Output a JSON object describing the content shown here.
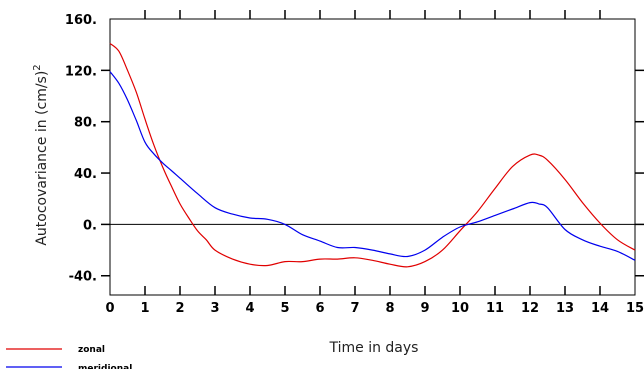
{
  "chart_data": {
    "type": "line",
    "xlabel": "Time in days",
    "ylabel": "Autocovariance in (cm/s)",
    "ylabel_superscript": "2",
    "xlim": [
      0,
      15
    ],
    "ylim": [
      -55,
      160
    ],
    "x_ticks": [
      "0",
      "1",
      "2",
      "3",
      "4",
      "5",
      "6",
      "7",
      "8",
      "9",
      "10",
      "11",
      "12",
      "13",
      "14",
      "15"
    ],
    "y_ticks": [
      "160.",
      "120.",
      "80.",
      "40.",
      "0.",
      "-40."
    ],
    "zero_line": true,
    "grid": false,
    "series": [
      {
        "name": "zonal",
        "color": "#e00000",
        "x": [
          0,
          0.25,
          0.5,
          0.75,
          1,
          1.25,
          1.5,
          1.75,
          2,
          2.25,
          2.5,
          2.75,
          3,
          3.5,
          4,
          4.5,
          5,
          5.5,
          6,
          6.5,
          7,
          7.5,
          8,
          8.5,
          9,
          9.5,
          10,
          10.5,
          11,
          11.5,
          12,
          12.25,
          12.5,
          13,
          13.5,
          14,
          14.5,
          15
        ],
        "y": [
          141,
          135,
          120,
          103,
          82,
          62,
          45,
          30,
          16,
          5,
          -5,
          -12,
          -20,
          -27,
          -31,
          -32,
          -29,
          -29,
          -27,
          -27,
          -26,
          -28,
          -31,
          -33,
          -29,
          -20,
          -5,
          10,
          28,
          45,
          54,
          54,
          50,
          35,
          17,
          1,
          -12,
          -20
        ]
      },
      {
        "name": "meridional",
        "color": "#0000ee",
        "x": [
          0,
          0.25,
          0.5,
          0.75,
          1,
          1.25,
          1.5,
          1.75,
          2,
          2.5,
          3,
          3.5,
          4,
          4.5,
          5,
          5.5,
          6,
          6.5,
          7,
          7.5,
          8,
          8.5,
          9,
          9.5,
          10,
          10.5,
          11,
          11.5,
          12,
          12.25,
          12.5,
          13,
          13.5,
          14,
          14.5,
          15
        ],
        "y": [
          119,
          110,
          97,
          81,
          64,
          55,
          48,
          42,
          36,
          24,
          13,
          8,
          5,
          4,
          0,
          -8,
          -13,
          -18,
          -18,
          -20,
          -23,
          -25,
          -20,
          -10,
          -2,
          2,
          7,
          12,
          17,
          16,
          13,
          -4,
          -12,
          -17,
          -21,
          -28
        ]
      }
    ],
    "legend_placement": "bottom-left"
  }
}
